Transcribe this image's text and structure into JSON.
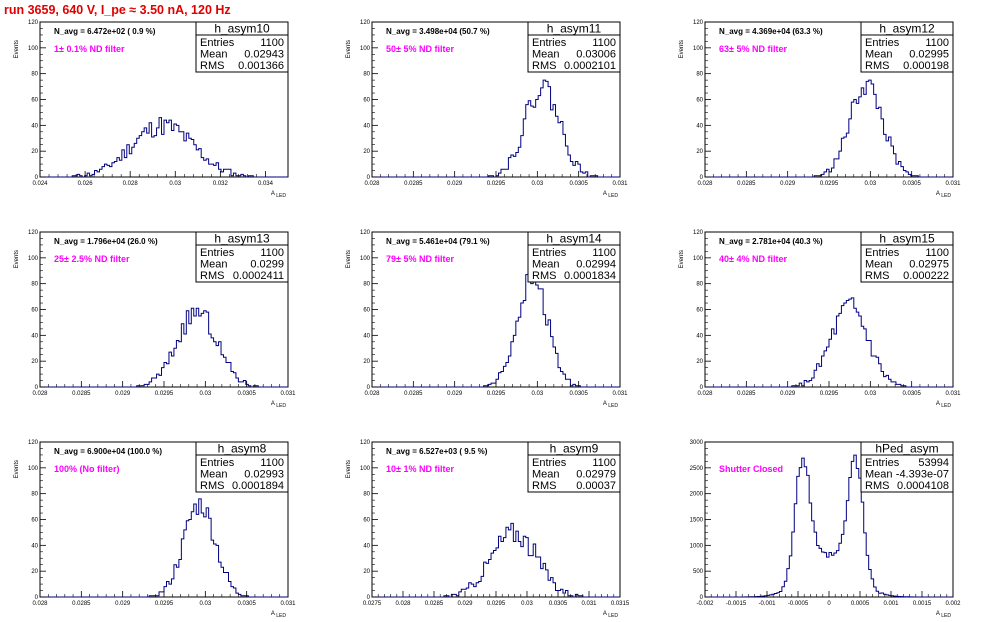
{
  "page": {
    "title": "run 3659,   640 V, I_pe ≈ 3.50 nA, 120 Hz"
  },
  "chart_data": [
    {
      "type": "histogram",
      "name": "h_asym10",
      "navg": "N_avg = 6.472e+02 ( 0.9 %)",
      "filter": "1± 0.1% ND filter",
      "entries": "1100",
      "mean": "0.02943",
      "rms": "0.001366",
      "xlim": [
        0.024,
        0.035
      ],
      "ylim": [
        0,
        120
      ],
      "xticks": [
        0.024,
        0.026,
        0.028,
        0.03,
        0.032,
        0.034
      ],
      "xtick_labels": [
        "0.024",
        "0.026",
        "0.028",
        "0.03",
        "0.032",
        "0.034"
      ],
      "yticks": [
        0,
        20,
        40,
        60,
        80,
        100,
        120
      ],
      "xlabel": "A_LED",
      "ylabel": "Events",
      "dist": "gauss",
      "mu": 0.02943,
      "sigma": 0.001366,
      "peak": 40,
      "noise": 8,
      "seed": 11
    },
    {
      "type": "histogram",
      "name": "h_asym11",
      "navg": "N_avg = 3.498e+04 (50.7 %)",
      "filter": "50± 5% ND filter",
      "entries": "1100",
      "mean": "0.03006",
      "rms": "0.0002101",
      "xlim": [
        0.028,
        0.031
      ],
      "ylim": [
        0,
        120
      ],
      "xticks": [
        0.028,
        0.0285,
        0.029,
        0.0295,
        0.03,
        0.0305,
        0.031
      ],
      "xtick_labels": [
        "0.028",
        "0.0285",
        "0.029",
        "0.0295",
        "0.03",
        "0.0305",
        "0.031"
      ],
      "yticks": [
        0,
        20,
        40,
        60,
        80,
        100,
        120
      ],
      "xlabel": "A_LED",
      "ylabel": "Events",
      "dist": "gauss",
      "mu": 0.03006,
      "sigma": 0.0002101,
      "peak": 70,
      "noise": 10,
      "seed": 22
    },
    {
      "type": "histogram",
      "name": "h_asym12",
      "navg": "N_avg = 4.369e+04 (63.3 %)",
      "filter": "63± 5% ND filter",
      "entries": "1100",
      "mean": "0.02995",
      "rms": "0.000198",
      "xlim": [
        0.028,
        0.031
      ],
      "ylim": [
        0,
        120
      ],
      "xticks": [
        0.028,
        0.0285,
        0.029,
        0.0295,
        0.03,
        0.0305,
        0.031
      ],
      "xtick_labels": [
        "0.028",
        "0.0285",
        "0.029",
        "0.0295",
        "0.03",
        "0.0305",
        "0.031"
      ],
      "yticks": [
        0,
        20,
        40,
        60,
        80,
        100,
        120
      ],
      "xlabel": "A_LED",
      "ylabel": "Events",
      "dist": "gauss",
      "mu": 0.02995,
      "sigma": 0.000198,
      "peak": 72,
      "noise": 9,
      "seed": 33
    },
    {
      "type": "histogram",
      "name": "h_asym13",
      "navg": "N_avg = 1.796e+04 (26.0 %)",
      "filter": "25± 2.5% ND filter",
      "entries": "1100",
      "mean": "0.0299",
      "rms": "0.0002411",
      "xlim": [
        0.028,
        0.031
      ],
      "ylim": [
        0,
        120
      ],
      "xticks": [
        0.028,
        0.0285,
        0.029,
        0.0295,
        0.03,
        0.0305,
        0.031
      ],
      "xtick_labels": [
        "0.028",
        "0.0285",
        "0.029",
        "0.0295",
        "0.03",
        "0.0305",
        "0.031"
      ],
      "yticks": [
        0,
        20,
        40,
        60,
        80,
        100,
        120
      ],
      "xlabel": "A_LED",
      "ylabel": "Events",
      "dist": "gauss",
      "mu": 0.0299,
      "sigma": 0.0002411,
      "peak": 58,
      "noise": 8,
      "seed": 44
    },
    {
      "type": "histogram",
      "name": "h_asym14",
      "navg": "N_avg = 5.461e+04 (79.1 %)",
      "filter": "79± 5% ND filter",
      "entries": "1100",
      "mean": "0.02994",
      "rms": "0.0001834",
      "xlim": [
        0.028,
        0.031
      ],
      "ylim": [
        0,
        120
      ],
      "xticks": [
        0.028,
        0.0285,
        0.029,
        0.0295,
        0.03,
        0.0305,
        0.031
      ],
      "xtick_labels": [
        "0.028",
        "0.0285",
        "0.029",
        "0.0295",
        "0.03",
        "0.0305",
        "0.031"
      ],
      "yticks": [
        0,
        20,
        40,
        60,
        80,
        100,
        120
      ],
      "xlabel": "A_LED",
      "ylabel": "Events",
      "dist": "gauss",
      "mu": 0.02994,
      "sigma": 0.0001834,
      "peak": 85,
      "noise": 10,
      "seed": 55
    },
    {
      "type": "histogram",
      "name": "h_asym15",
      "navg": "N_avg = 2.781e+04 (40.3 %)",
      "filter": "40± 4% ND filter",
      "entries": "1100",
      "mean": "0.02975",
      "rms": "0.000222",
      "xlim": [
        0.028,
        0.031
      ],
      "ylim": [
        0,
        120
      ],
      "xticks": [
        0.028,
        0.0285,
        0.029,
        0.0295,
        0.03,
        0.0305,
        0.031
      ],
      "xtick_labels": [
        "0.028",
        "0.0285",
        "0.029",
        "0.0295",
        "0.03",
        "0.0305",
        "0.031"
      ],
      "yticks": [
        0,
        20,
        40,
        60,
        80,
        100,
        120
      ],
      "xlabel": "A_LED",
      "ylabel": "Events",
      "dist": "gauss",
      "mu": 0.02975,
      "sigma": 0.000222,
      "peak": 62,
      "noise": 9,
      "seed": 66
    },
    {
      "type": "histogram",
      "name": "h_asym8",
      "navg": "N_avg = 6.900e+04 (100.0 %)",
      "filter": "100% (No filter)",
      "entries": "1100",
      "mean": "0.02993",
      "rms": "0.0001894",
      "xlim": [
        0.028,
        0.031
      ],
      "ylim": [
        0,
        120
      ],
      "xticks": [
        0.028,
        0.0285,
        0.029,
        0.0295,
        0.03,
        0.0305,
        0.031
      ],
      "xtick_labels": [
        "0.028",
        "0.0285",
        "0.029",
        "0.0295",
        "0.03",
        "0.0305",
        "0.031"
      ],
      "yticks": [
        0,
        20,
        40,
        60,
        80,
        100,
        120
      ],
      "xlabel": "A_LED",
      "ylabel": "Events",
      "dist": "gauss",
      "mu": 0.02993,
      "sigma": 0.0001894,
      "peak": 72,
      "noise": 9,
      "seed": 77
    },
    {
      "type": "histogram",
      "name": "h_asym9",
      "navg": "N_avg = 6.527e+03 ( 9.5 %)",
      "filter": "10± 1% ND filter",
      "entries": "1100",
      "mean": "0.02979",
      "rms": "0.00037",
      "xlim": [
        0.0275,
        0.0315
      ],
      "ylim": [
        0,
        120
      ],
      "xticks": [
        0.0275,
        0.028,
        0.0285,
        0.029,
        0.0295,
        0.03,
        0.0305,
        0.031,
        0.0315
      ],
      "xtick_labels": [
        "0.0275",
        "0.028",
        "0.0285",
        "0.029",
        "0.0295",
        "0.03",
        "0.0305",
        "0.031",
        "0.0315"
      ],
      "yticks": [
        0,
        20,
        40,
        60,
        80,
        100,
        120
      ],
      "xlabel": "A_LED",
      "ylabel": "Events",
      "dist": "gauss",
      "mu": 0.02979,
      "sigma": 0.00037,
      "peak": 50,
      "noise": 9,
      "seed": 88
    },
    {
      "type": "histogram",
      "name": "hPed_asym",
      "navg": "",
      "filter": "Shutter Closed",
      "entries": "53994",
      "mean": "-4.393e-07",
      "rms": "0.0004108",
      "xlim": [
        -0.002,
        0.002
      ],
      "ylim": [
        0,
        3000
      ],
      "xticks": [
        -0.002,
        -0.0015,
        -0.001,
        -0.0005,
        0,
        0.0005,
        0.001,
        0.0015,
        0.002
      ],
      "xtick_labels": [
        "-0.002",
        "-0.0015",
        "-0.001",
        "-0.0005",
        "0",
        "0.0005",
        "0.001",
        "0.0015",
        "0.002"
      ],
      "yticks": [
        0,
        500,
        1000,
        1500,
        2000,
        2500,
        3000
      ],
      "xlabel": "A_LED",
      "ylabel": "",
      "dist": "bimodal",
      "mu1": -0.00042,
      "mu2": 0.00042,
      "sigma": 0.00012,
      "peak": 2700,
      "floor": 800,
      "noise": 120,
      "seed": 99
    }
  ]
}
